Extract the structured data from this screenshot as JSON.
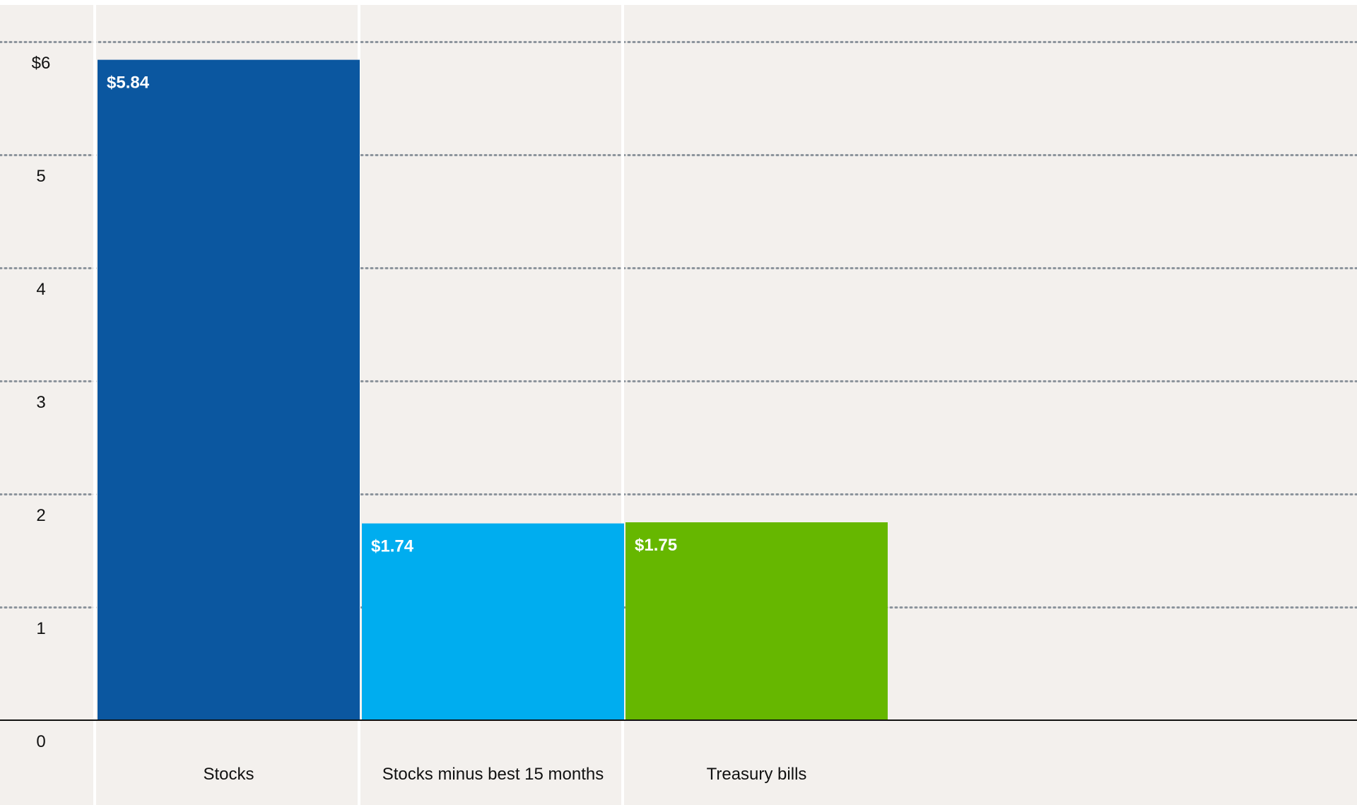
{
  "chart_data": {
    "type": "bar",
    "categories": [
      "Stocks",
      "Stocks minus best 15 months",
      "Treasury bills"
    ],
    "values": [
      5.84,
      1.74,
      1.75
    ],
    "value_labels": [
      "$5.84",
      "$1.74",
      "$1.75"
    ],
    "colors": [
      "#0b57a0",
      "#00adef",
      "#66b700"
    ],
    "y_ticks": [
      {
        "value": 0,
        "label": "0"
      },
      {
        "value": 1,
        "label": "1"
      },
      {
        "value": 2,
        "label": "2"
      },
      {
        "value": 3,
        "label": "3"
      },
      {
        "value": 4,
        "label": "4"
      },
      {
        "value": 5,
        "label": "5"
      },
      {
        "value": 6,
        "label": "$6"
      }
    ],
    "ylim": [
      0,
      6.3
    ],
    "grid": true,
    "title": "",
    "xlabel": "",
    "ylabel": ""
  },
  "colors": {
    "background": "#f3f0ed",
    "gridline": "#8c949c",
    "baseline": "#111111",
    "column_divider": "#ffffff",
    "value_label": "#ffffff",
    "axis_text": "#111111"
  }
}
